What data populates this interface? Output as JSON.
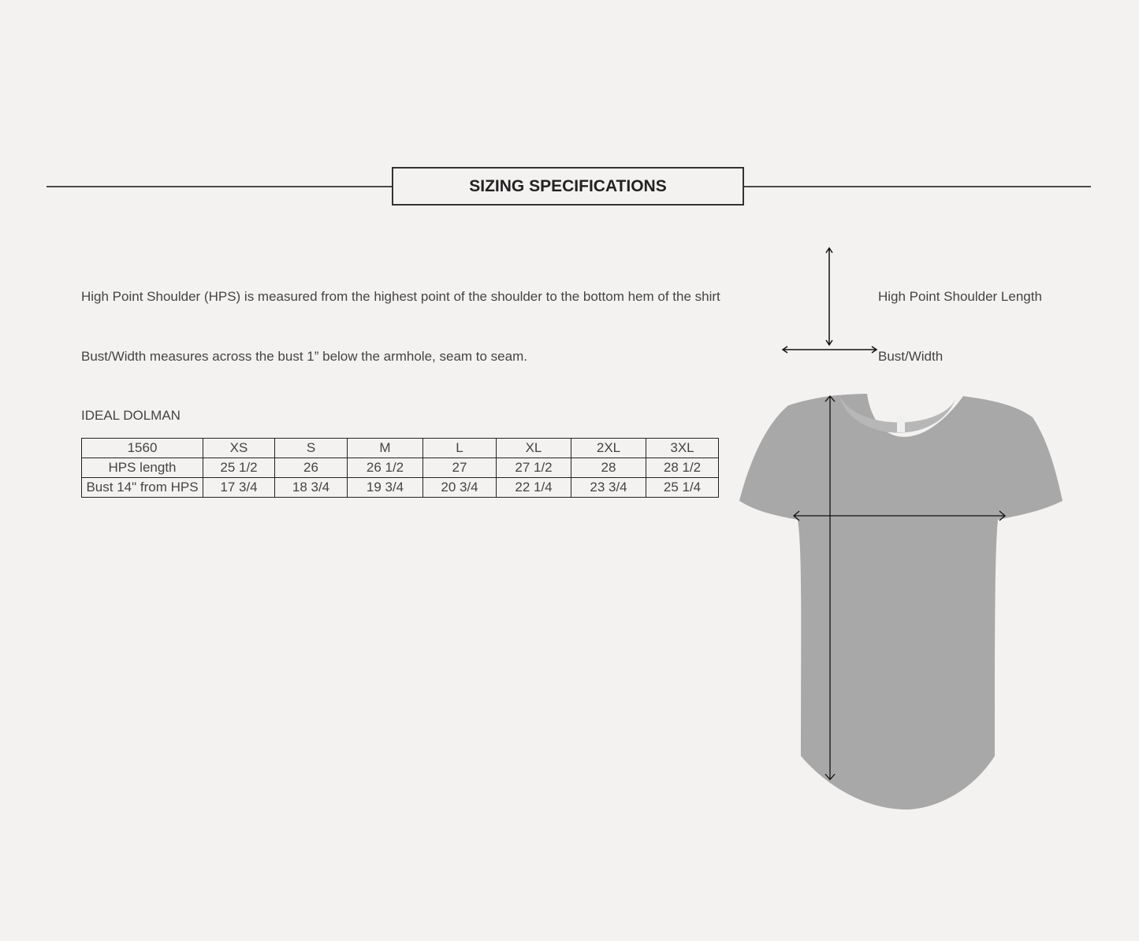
{
  "header": {
    "title": "SIZING SPECIFICATIONS"
  },
  "descriptions": {
    "hps": "High Point Shoulder (HPS) is measured from the highest point of the shoulder to the bottom hem of the shirt",
    "bust": "Bust/Width measures across the bust 1” below the armhole, seam to seam."
  },
  "legend": {
    "hps_label": "High Point Shoulder Length",
    "bust_label": "Bust/Width"
  },
  "table": {
    "caption": "IDEAL DOLMAN",
    "header": [
      "1560",
      "XS",
      "S",
      "M",
      "L",
      "XL",
      "2XL",
      "3XL"
    ],
    "rows": [
      [
        "HPS length",
        "25 1/2",
        "26",
        "26  1/2",
        "27",
        "27 1/2",
        "28",
        "28 1/2"
      ],
      [
        "Bust 14\" from HPS",
        "17 3/4",
        "18 3/4",
        "19 3/4",
        "20 3/4",
        "22 1/4",
        "23 3/4",
        "25 1/4"
      ]
    ]
  },
  "colors": {
    "background": "#f4f2f1",
    "shirt": "#a9a8a8",
    "arrows": "#111111"
  }
}
